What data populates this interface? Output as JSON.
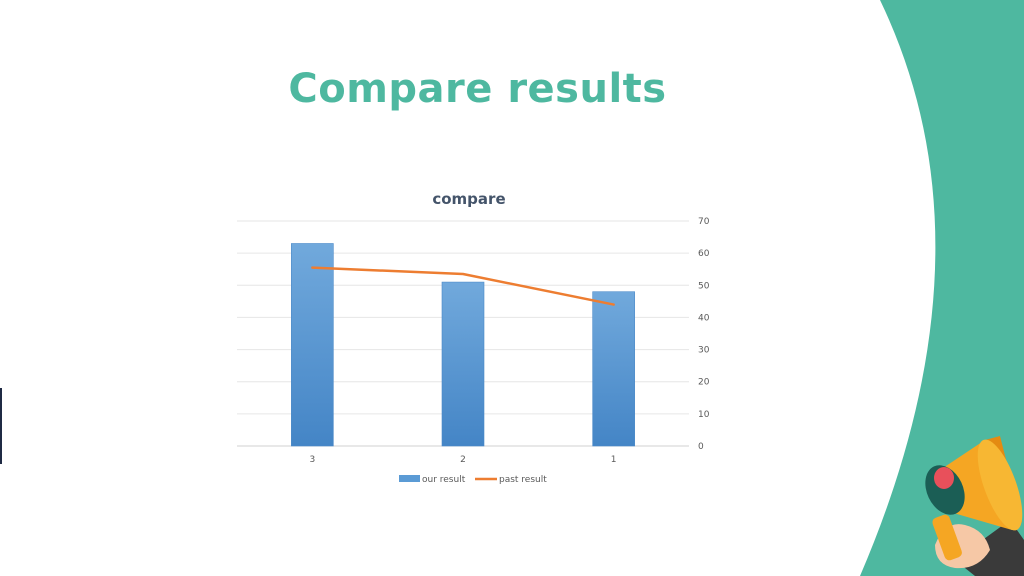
{
  "slide": {
    "title": "Compare results",
    "accent_color": "#4eb8a0"
  },
  "chart_data": {
    "type": "bar",
    "title": "compare",
    "categories": [
      "3",
      "2",
      "1"
    ],
    "series": [
      {
        "name": "our result",
        "type": "bar",
        "values": [
          63,
          51,
          48
        ],
        "color": "#5b9bd5"
      },
      {
        "name": "past result",
        "type": "line",
        "values": [
          55.5,
          53.5,
          44
        ],
        "color": "#ed7d31"
      }
    ],
    "ylim": [
      0,
      70
    ],
    "yticks": [
      0,
      10,
      20,
      30,
      40,
      50,
      60,
      70
    ],
    "y_axis_side": "right",
    "grid": true,
    "legend_position": "bottom"
  },
  "decoration": {
    "icon": "megaphone-icon"
  }
}
